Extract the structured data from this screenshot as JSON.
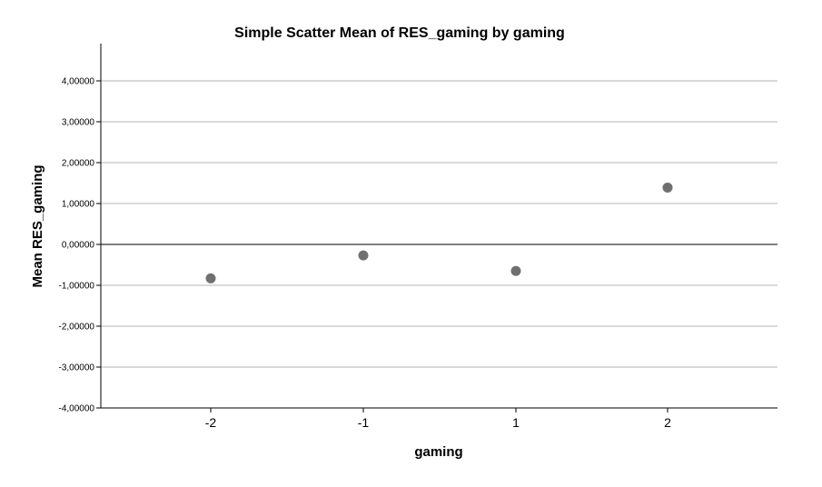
{
  "chart_data": {
    "type": "scatter",
    "title": "Simple Scatter Mean of RES_gaming by gaming",
    "xlabel": "gaming",
    "ylabel": "Mean RES_gaming",
    "categories": [
      "-2",
      "-1",
      "1",
      "2"
    ],
    "y_tick_labels": [
      "4,00000",
      "3,00000",
      "2,00000",
      "1,00000",
      "0,00000",
      "-1,00000",
      "-2,00000",
      "-3,00000",
      "-4,00000"
    ],
    "y_ticks": [
      4,
      3,
      2,
      1,
      0,
      -1,
      -2,
      -3,
      -4
    ],
    "ylim": [
      -4,
      4.9
    ],
    "grid": true,
    "reference_line_y": 0,
    "marker_color": "#707070",
    "series": [
      {
        "values": [
          -0.83,
          -0.27,
          -0.65,
          1.39
        ]
      }
    ]
  }
}
